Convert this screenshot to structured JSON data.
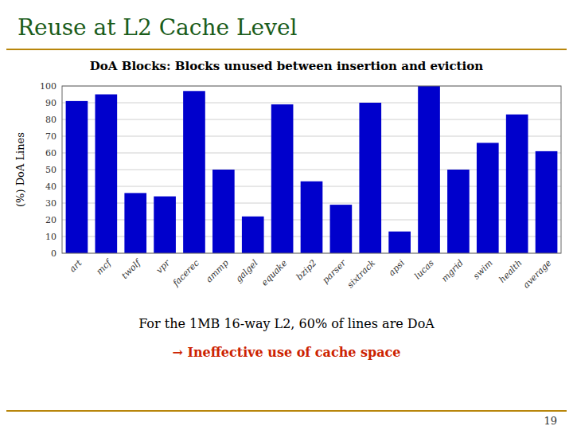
{
  "chart_data": {
    "type": "bar",
    "title": "Reuse at L2 Cache Level",
    "subtitle": "DoA Blocks: Blocks unused between insertion and eviction",
    "ylabel": "(%) DoA Lines",
    "categories": [
      "art",
      "mcf",
      "twolf",
      "vpr",
      "facerec",
      "ammp",
      "galgel",
      "equake",
      "bzip2",
      "parser",
      "sixtrack",
      "apsi",
      "lucas",
      "mgrid",
      "swim",
      "health",
      "average"
    ],
    "values": [
      91,
      95,
      36,
      34,
      97,
      50,
      22,
      89,
      43,
      29,
      90,
      13,
      100,
      50,
      66,
      83,
      61
    ],
    "color": "#0000CC",
    "ylim": [
      0,
      100
    ],
    "yticks": [
      0,
      10,
      20,
      30,
      40,
      50,
      60,
      70,
      80,
      90,
      100
    ],
    "grid": true,
    "annotations": [
      "For the 1MB 16-way L2, 60% of lines are DoA",
      "→ Ineffective use of cache space",
      "19"
    ]
  }
}
